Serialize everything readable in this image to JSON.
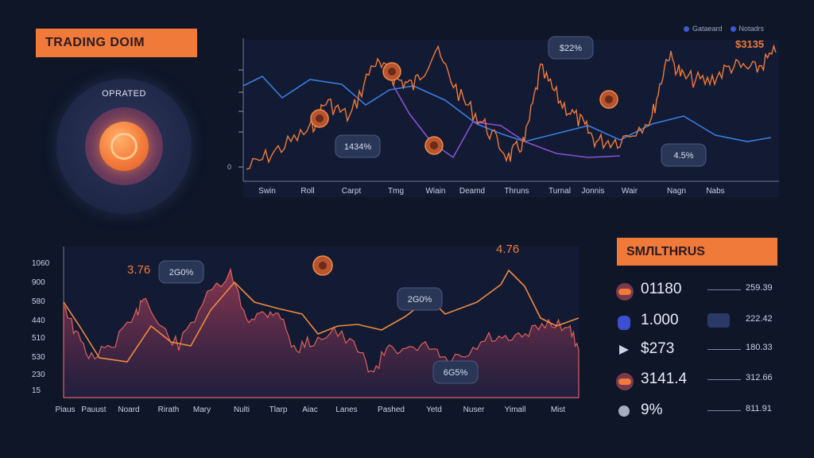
{
  "header": {
    "title": "TRADING DOIM"
  },
  "dial": {
    "label": "OPRATED"
  },
  "legend": {
    "label_a": "Gataeard",
    "label_b": "Notadrs"
  },
  "top_chart": {
    "price_label": "$3135",
    "callouts": [
      "$22%",
      "1434%",
      "4.5%"
    ],
    "x_labels": [
      "Swin",
      "Roll",
      "Carpt",
      "Tmg",
      "Wiain",
      "Deamd",
      "Thruns",
      "Turnal",
      "Jonnis",
      "Wair",
      "Nagn",
      "Nabs"
    ],
    "y_ticks": [
      "",
      "",
      "",
      "",
      "0"
    ]
  },
  "bottom_chart": {
    "peak_left": "3.76",
    "peak_right": "4.76",
    "callouts": [
      "2G0%",
      "2G0%",
      "6G5%"
    ],
    "y_labels": [
      "1060",
      "900",
      "580",
      "440",
      "510",
      "530",
      "230",
      "15"
    ],
    "x_labels": [
      "Piaus",
      "Pauust",
      "Noard",
      "Rirath",
      "Mary",
      "Nulti",
      "Tlarp",
      "Aiac",
      "Lanes",
      "Pashed",
      "Yetd",
      "Nuser",
      "Yimall",
      "Mist"
    ]
  },
  "right_panel": {
    "title": "SMЛLTHRUS",
    "rows": [
      {
        "icon": "orange-pill-icon",
        "value": "01180",
        "right": "259.39",
        "color": "#f07a3a"
      },
      {
        "icon": "blue-shield-icon",
        "value": "1.000",
        "right": "222.42",
        "color": "#3b4fd0"
      },
      {
        "icon": "play-arrow-icon",
        "value": "$273",
        "right": "180.33",
        "color": "#c9d2e6"
      },
      {
        "icon": "orange-pill-icon",
        "value": "3141.4",
        "right": "312.66",
        "color": "#f07a3a"
      },
      {
        "icon": "grey-dot-icon",
        "value": "9%",
        "right": "811.91",
        "color": "#a7adbd"
      }
    ]
  },
  "colors": {
    "accent": "#f07a3a",
    "blue_line": "#3a7de0",
    "purple_line": "#8a4fd0",
    "bg": "#0e1628"
  }
}
